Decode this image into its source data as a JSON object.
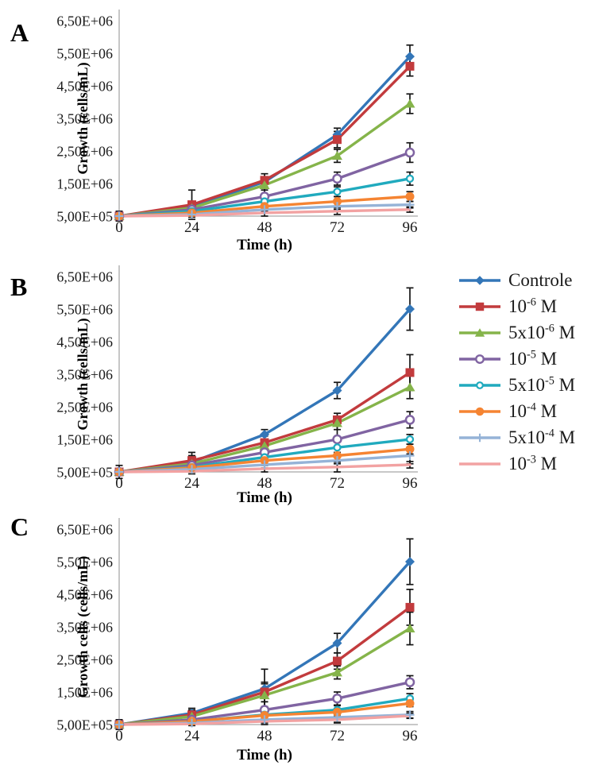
{
  "figure_title": "",
  "legend": {
    "position": "right",
    "entries": [
      {
        "base": "Controle",
        "exp": "",
        "unit": "",
        "color": "#3376B8",
        "marker": "diamond"
      },
      {
        "base": "10",
        "exp": "-6",
        "unit": " M",
        "color": "#C23B3D",
        "marker": "square"
      },
      {
        "base": "5x10",
        "exp": "-6",
        "unit": " M",
        "color": "#85B44A",
        "marker": "triangle"
      },
      {
        "base": "10",
        "exp": "-5",
        "unit": " M",
        "color": "#8064A2",
        "marker": "circle-open"
      },
      {
        "base": "5x10",
        "exp": "-5",
        "unit": " M",
        "color": "#20AABE",
        "marker": "circle-open-small"
      },
      {
        "base": "10",
        "exp": "-4",
        "unit": " M",
        "color": "#F58432",
        "marker": "circle"
      },
      {
        "base": "5x10",
        "exp": "-4",
        "unit": " M",
        "color": "#95B3D7",
        "marker": "plus"
      },
      {
        "base": "10",
        "exp": "-3",
        "unit": " M",
        "color": "#F2A2A2",
        "marker": "none"
      }
    ]
  },
  "chart_data": [
    {
      "type": "line",
      "panel_label": "A",
      "title": "",
      "xlabel": "Time (h)",
      "ylabel": "Growth (cells/mL)",
      "x": [
        0,
        24,
        48,
        72,
        96
      ],
      "xtick_labels": [
        "0",
        "24",
        "48",
        "72",
        "96"
      ],
      "ylim": [
        500000,
        6500000
      ],
      "yticks": [
        500000,
        1500000,
        2500000,
        3500000,
        4500000,
        5500000,
        6500000
      ],
      "ytick_labels": [
        "5,00E+05",
        "1,50E+06",
        "2,50E+06",
        "3,50E+06",
        "4,50E+06",
        "5,50E+06",
        "6,50E+06"
      ],
      "grid": false,
      "error_bars": true,
      "series": [
        {
          "name": "Controle",
          "color": "#3376B8",
          "marker": "diamond",
          "values": [
            500000,
            800000,
            1550000,
            3000000,
            5400000
          ],
          "errors": [
            150000,
            100000,
            150000,
            200000,
            350000
          ]
        },
        {
          "name": "10⁻⁶ M",
          "color": "#C23B3D",
          "marker": "square",
          "values": [
            500000,
            850000,
            1600000,
            2850000,
            5100000
          ],
          "errors": [
            100000,
            450000,
            200000,
            250000,
            300000
          ]
        },
        {
          "name": "5x10⁻⁶ M",
          "color": "#85B44A",
          "marker": "triangle",
          "values": [
            500000,
            750000,
            1450000,
            2350000,
            3950000
          ],
          "errors": [
            100000,
            100000,
            150000,
            200000,
            300000
          ]
        },
        {
          "name": "10⁻⁵ M",
          "color": "#8064A2",
          "marker": "circle-open",
          "values": [
            500000,
            700000,
            1100000,
            1650000,
            2450000
          ],
          "errors": [
            100000,
            100000,
            300000,
            200000,
            300000
          ]
        },
        {
          "name": "5x10⁻⁵ M",
          "color": "#20AABE",
          "marker": "circle-open-small",
          "values": [
            500000,
            650000,
            950000,
            1250000,
            1650000
          ],
          "errors": [
            50000,
            100000,
            150000,
            150000,
            200000
          ]
        },
        {
          "name": "10⁻⁴ M",
          "color": "#F58432",
          "marker": "circle",
          "values": [
            500000,
            600000,
            800000,
            950000,
            1100000
          ],
          "errors": [
            50000,
            80000,
            150000,
            150000,
            150000
          ]
        },
        {
          "name": "5x10⁻⁴ M",
          "color": "#95B3D7",
          "marker": "plus",
          "values": [
            500000,
            550000,
            700000,
            800000,
            850000
          ],
          "errors": [
            50000,
            80000,
            100000,
            100000,
            100000
          ]
        },
        {
          "name": "10⁻³ M",
          "color": "#F2A2A2",
          "marker": "none",
          "values": [
            500000,
            520000,
            600000,
            650000,
            700000
          ],
          "errors": [
            30000,
            50000,
            100000,
            100000,
            80000
          ]
        }
      ]
    },
    {
      "type": "line",
      "panel_label": "B",
      "title": "",
      "xlabel": "Time (h)",
      "ylabel": "Growth (cells/mL)",
      "x": [
        0,
        24,
        48,
        72,
        96
      ],
      "xtick_labels": [
        "0",
        "24",
        "48",
        "72",
        "96"
      ],
      "ylim": [
        500000,
        6500000
      ],
      "yticks": [
        500000,
        1500000,
        2500000,
        3500000,
        4500000,
        5500000,
        6500000
      ],
      "ytick_labels": [
        "5,00E+05",
        "1,50E+06",
        "2,50E+06",
        "3,50E+06",
        "4,50E+06",
        "5,50E+06",
        "6,50E+06"
      ],
      "grid": false,
      "error_bars": true,
      "series": [
        {
          "name": "Controle",
          "color": "#3376B8",
          "marker": "diamond",
          "values": [
            500000,
            800000,
            1650000,
            3000000,
            5500000
          ],
          "errors": [
            200000,
            300000,
            150000,
            250000,
            650000
          ]
        },
        {
          "name": "10⁻⁶ M",
          "color": "#C23B3D",
          "marker": "square",
          "values": [
            500000,
            850000,
            1400000,
            2100000,
            3550000
          ],
          "errors": [
            100000,
            150000,
            200000,
            200000,
            550000
          ]
        },
        {
          "name": "5x10⁻⁶ M",
          "color": "#85B44A",
          "marker": "triangle",
          "values": [
            500000,
            750000,
            1300000,
            2000000,
            3100000
          ],
          "errors": [
            100000,
            100000,
            150000,
            200000,
            350000
          ]
        },
        {
          "name": "10⁻⁵ M",
          "color": "#8064A2",
          "marker": "circle-open",
          "values": [
            500000,
            700000,
            1100000,
            1500000,
            2100000
          ],
          "errors": [
            100000,
            100000,
            200000,
            400000,
            250000
          ]
        },
        {
          "name": "5x10⁻⁵ M",
          "color": "#20AABE",
          "marker": "circle-open-small",
          "values": [
            500000,
            650000,
            950000,
            1250000,
            1500000
          ],
          "errors": [
            50000,
            100000,
            150000,
            300000,
            150000
          ]
        },
        {
          "name": "10⁻⁴ M",
          "color": "#F58432",
          "marker": "circle",
          "values": [
            500000,
            630000,
            850000,
            1000000,
            1200000
          ],
          "errors": [
            50000,
            100000,
            150000,
            250000,
            150000
          ]
        },
        {
          "name": "5x10⁻⁴ M",
          "color": "#95B3D7",
          "marker": "plus",
          "values": [
            500000,
            580000,
            720000,
            850000,
            1000000
          ],
          "errors": [
            50000,
            80000,
            100000,
            200000,
            250000
          ]
        },
        {
          "name": "10⁻³ M",
          "color": "#F2A2A2",
          "marker": "none",
          "values": [
            500000,
            520000,
            600000,
            650000,
            720000
          ],
          "errors": [
            30000,
            80000,
            100000,
            150000,
            100000
          ]
        }
      ]
    },
    {
      "type": "line",
      "panel_label": "C",
      "title": "",
      "xlabel": "Time (h)",
      "ylabel": "Growth cells (cells/mL)",
      "x": [
        0,
        24,
        48,
        72,
        96
      ],
      "xtick_labels": [
        "0",
        "24",
        "48",
        "72",
        "96"
      ],
      "ylim": [
        500000,
        6500000
      ],
      "yticks": [
        500000,
        1500000,
        2500000,
        3500000,
        4500000,
        5500000,
        6500000
      ],
      "ytick_labels": [
        "5,00E+05",
        "1,50E+06",
        "2,50E+06",
        "3,50E+06",
        "4,50E+06",
        "5,50E+06",
        "6,50E+06"
      ],
      "grid": false,
      "error_bars": true,
      "series": [
        {
          "name": "Controle",
          "color": "#3376B8",
          "marker": "diamond",
          "values": [
            500000,
            850000,
            1600000,
            3000000,
            5500000
          ],
          "errors": [
            150000,
            150000,
            600000,
            300000,
            700000
          ]
        },
        {
          "name": "10⁻⁶ M",
          "color": "#C23B3D",
          "marker": "square",
          "values": [
            500000,
            800000,
            1500000,
            2450000,
            4100000
          ],
          "errors": [
            100000,
            150000,
            300000,
            250000,
            550000
          ]
        },
        {
          "name": "5x10⁻⁶ M",
          "color": "#85B44A",
          "marker": "triangle",
          "values": [
            500000,
            750000,
            1400000,
            2100000,
            3450000
          ],
          "errors": [
            100000,
            100000,
            350000,
            200000,
            500000
          ]
        },
        {
          "name": "10⁻⁵ M",
          "color": "#8064A2",
          "marker": "circle-open",
          "values": [
            500000,
            650000,
            950000,
            1300000,
            1800000
          ],
          "errors": [
            80000,
            100000,
            250000,
            200000,
            200000
          ]
        },
        {
          "name": "5x10⁻⁵ M",
          "color": "#20AABE",
          "marker": "circle-open-small",
          "values": [
            500000,
            600000,
            800000,
            950000,
            1300000
          ],
          "errors": [
            50000,
            100000,
            150000,
            150000,
            150000
          ]
        },
        {
          "name": "10⁻⁴ M",
          "color": "#F58432",
          "marker": "circle",
          "values": [
            500000,
            600000,
            780000,
            880000,
            1150000
          ],
          "errors": [
            50000,
            100000,
            150000,
            200000,
            100000
          ]
        },
        {
          "name": "5x10⁻⁴ M",
          "color": "#95B3D7",
          "marker": "plus",
          "values": [
            500000,
            550000,
            650000,
            720000,
            800000
          ],
          "errors": [
            50000,
            80000,
            100000,
            150000,
            100000
          ]
        },
        {
          "name": "10⁻³ M",
          "color": "#F2A2A2",
          "marker": "none",
          "values": [
            500000,
            520000,
            600000,
            650000,
            770000
          ],
          "errors": [
            30000,
            50000,
            100000,
            100000,
            80000
          ]
        }
      ]
    }
  ]
}
